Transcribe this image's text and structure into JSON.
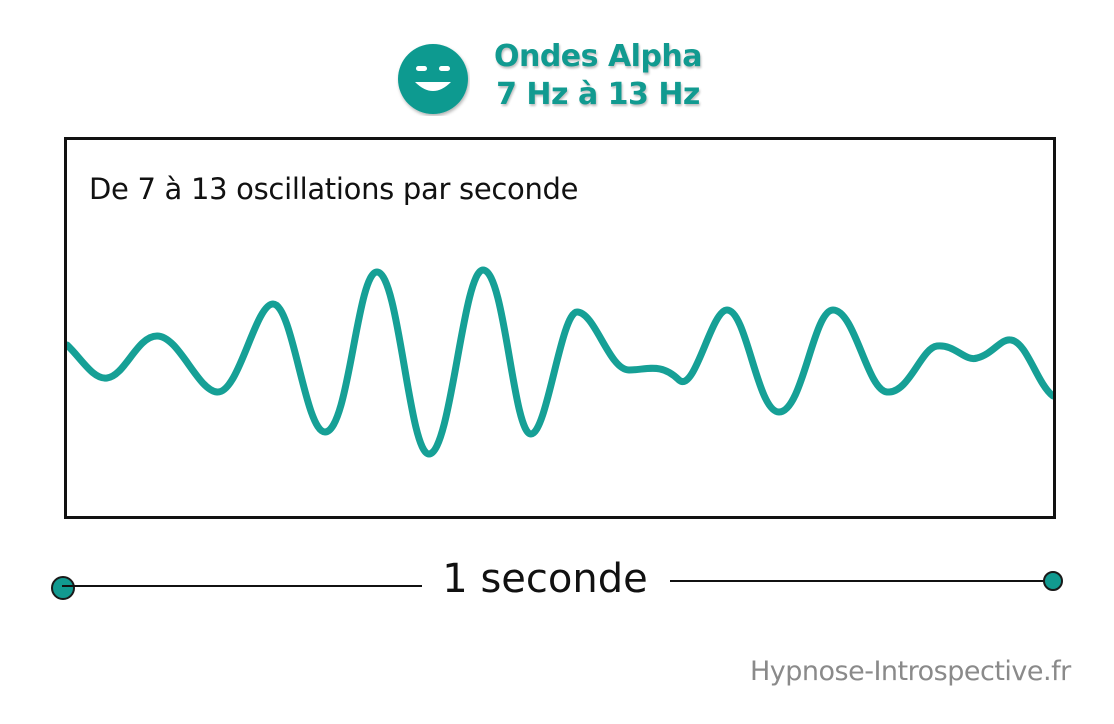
{
  "header": {
    "icon": "smiley-icon",
    "title_line1": "Ondes Alpha",
    "title_line2": "7 Hz à 13 Hz",
    "accent_color": "#119a90"
  },
  "diagram": {
    "caption": "De 7 à 13 oscillations par seconde",
    "wave_color": "#16a096"
  },
  "scale": {
    "label": "1 seconde",
    "endpoint_color": "#119a90"
  },
  "footer": {
    "watermark": "Hypnose-Introspective.fr"
  }
}
